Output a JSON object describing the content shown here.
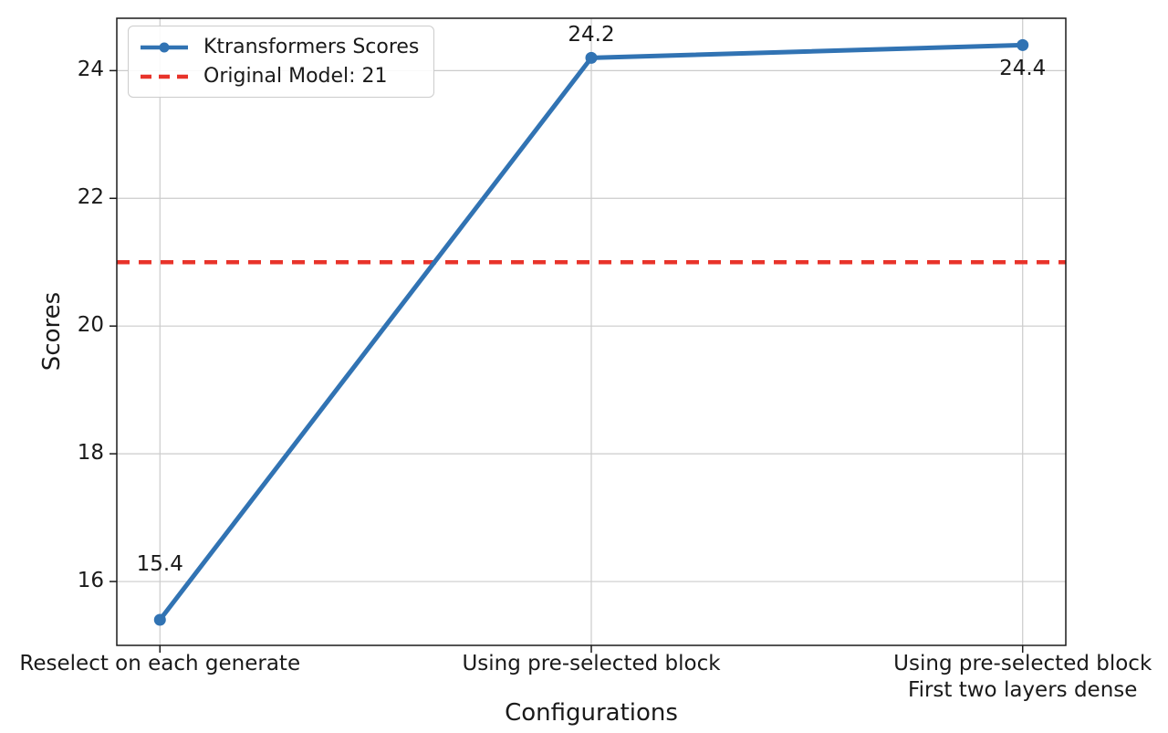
{
  "chart_data": {
    "type": "line",
    "title": "",
    "xlabel": "Configurations",
    "ylabel": "Scores",
    "categories": [
      "Reselect on each generate",
      "Using pre-selected block",
      "Using pre-selected block\nFirst two layers dense"
    ],
    "series": [
      {
        "name": "Ktransformers Scores",
        "values": [
          15.4,
          24.2,
          24.4
        ],
        "color": "#3173b3",
        "marker": "circle"
      }
    ],
    "reference_line": {
      "label": "Original Model: 21",
      "value": 21,
      "color": "#e8332a",
      "style": "dashed"
    },
    "point_labels": [
      {
        "text": "15.4",
        "index": 0,
        "dy": -61
      },
      {
        "text": "24.2",
        "index": 1,
        "dy": -25
      },
      {
        "text": "24.4",
        "index": 2,
        "dy": 26
      }
    ],
    "yticks": [
      16,
      18,
      20,
      22,
      24
    ],
    "ylim": [
      15.0,
      24.82
    ],
    "xlim": [
      -0.1,
      2.1
    ],
    "grid": true,
    "grid_color": "#cccccc",
    "axis_color": "#1a1a1a",
    "legend_position": "top-left"
  }
}
